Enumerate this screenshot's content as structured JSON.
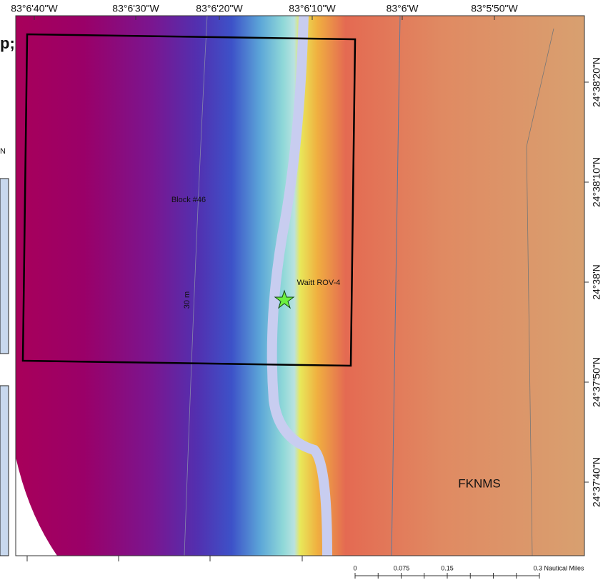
{
  "map": {
    "longitude_labels": [
      "83°6'40\"W",
      "83°6'30\"W",
      "83°6'20\"W",
      "83°6'10\"W",
      "83°6'W",
      "83°5'50\"W"
    ],
    "latitude_labels": [
      "24°38'20\"N",
      "24°38'10\"N",
      "24°38'N",
      "24°37'50\"N",
      "24°37'40\"N"
    ],
    "block_label": "Block #46",
    "site_label": "Waitt ROV-4",
    "contour_label": "30 m",
    "area_label": "FKNMS",
    "scale_bar": {
      "labels": [
        "0",
        "0.075",
        "0.15",
        "0.3 Nautical Miles"
      ]
    },
    "inset_fragments": [
      "p;",
      "N"
    ]
  }
}
